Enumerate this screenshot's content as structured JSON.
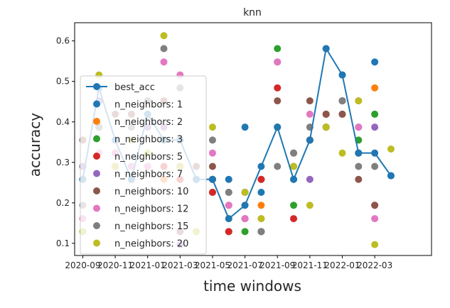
{
  "chart_data": {
    "type": "scatter",
    "title": "knn",
    "xlabel": "time windows",
    "ylabel": "accuracy",
    "x_ticks": [
      "2020-09",
      "2020-11",
      "2021-01",
      "2021-03",
      "2021-05",
      "2021-07",
      "2021-09",
      "2021-11",
      "2022-01",
      "2022-03"
    ],
    "y_ticks": [
      "0.1",
      "0.2",
      "0.3",
      "0.4",
      "0.5",
      "0.6"
    ],
    "xlim": [
      -0.5,
      21.5
    ],
    "ylim": [
      0.07,
      0.645
    ],
    "grid": false,
    "legend_position": "left",
    "legend": [
      {
        "label": "best_acc",
        "color": "#1f77b4",
        "kind": "line"
      },
      {
        "label": "n_neighbors: 1",
        "color": "#1f77b4",
        "kind": "marker"
      },
      {
        "label": "n_neighbors: 2",
        "color": "#ff7f0e",
        "kind": "marker"
      },
      {
        "label": "n_neighbors: 3",
        "color": "#2ca02c",
        "kind": "marker"
      },
      {
        "label": "n_neighbors: 5",
        "color": "#d62728",
        "kind": "marker"
      },
      {
        "label": "n_neighbors: 7",
        "color": "#9467bd",
        "kind": "marker"
      },
      {
        "label": "n_neighbors: 10",
        "color": "#8c564b",
        "kind": "marker"
      },
      {
        "label": "n_neighbors: 12",
        "color": "#e377c2",
        "kind": "marker"
      },
      {
        "label": "n_neighbors: 15",
        "color": "#7f7f7f",
        "kind": "marker"
      },
      {
        "label": "n_neighbors: 20",
        "color": "#bcbd22",
        "kind": "marker"
      }
    ],
    "x": [
      0,
      1,
      2,
      3,
      4,
      5,
      6,
      7,
      8,
      9,
      10,
      11,
      12,
      13,
      14,
      15,
      16,
      17,
      18,
      19,
      20,
      21
    ],
    "series": [
      {
        "name": "best_acc",
        "color": "#1f77b4",
        "type": "line",
        "values": [
          0.258,
          0.484,
          0.355,
          0.258,
          0.419,
          0.355,
          0.355,
          0.258,
          0.258,
          0.161,
          0.194,
          0.29,
          0.387,
          0.258,
          0.355,
          0.581,
          0.516,
          0.323,
          0.323,
          0.267,
          null,
          null
        ]
      },
      {
        "name": "n_neighbors: 1",
        "color": "#1f77b4",
        "type": "scatter",
        "values": [
          0.258,
          0.484,
          0.323,
          0.258,
          0.419,
          0.355,
          0.355,
          0.258,
          0.258,
          0.258,
          0.387,
          0.226,
          0.387,
          0.258,
          0.355,
          0.581,
          0.516,
          0.323,
          0.548,
          0.267,
          null,
          null
        ]
      },
      {
        "name": "n_neighbors: 2",
        "color": "#ff7f0e",
        "type": "scatter",
        "values": [
          0.29,
          0.452,
          0.323,
          0.29,
          0.29,
          0.258,
          0.29,
          0.258,
          0.258,
          0.194,
          0.194,
          0.194,
          0.387,
          0.29,
          0.355,
          0.419,
          0.452,
          0.452,
          0.484,
          null,
          null,
          null
        ]
      },
      {
        "name": "n_neighbors: 3",
        "color": "#2ca02c",
        "type": "scatter",
        "values": [
          0.29,
          0.452,
          0.29,
          0.29,
          0.29,
          0.29,
          0.29,
          0.258,
          0.226,
          0.129,
          0.129,
          0.258,
          0.581,
          0.194,
          0.355,
          0.387,
          0.452,
          0.355,
          0.419,
          null,
          null,
          null
        ]
      },
      {
        "name": "n_neighbors: 5",
        "color": "#d62728",
        "type": "scatter",
        "values": [
          0.29,
          0.387,
          0.29,
          0.258,
          0.29,
          0.29,
          0.258,
          0.258,
          0.226,
          0.129,
          0.161,
          0.258,
          0.484,
          0.161,
          0.355,
          0.419,
          0.452,
          0.323,
          0.194,
          null,
          null,
          null
        ]
      },
      {
        "name": "n_neighbors: 7",
        "color": "#9467bd",
        "type": "scatter",
        "values": [
          0.29,
          0.452,
          0.323,
          0.29,
          0.387,
          0.387,
          0.097,
          0.258,
          0.258,
          0.194,
          0.161,
          0.129,
          0.548,
          0.29,
          0.258,
          0.387,
          0.419,
          0.387,
          0.387,
          null,
          null,
          null
        ]
      },
      {
        "name": "n_neighbors: 10",
        "color": "#8c564b",
        "type": "scatter",
        "values": [
          0.355,
          0.387,
          0.419,
          0.419,
          0.452,
          0.452,
          0.129,
          0.29,
          0.29,
          0.226,
          0.226,
          0.129,
          0.452,
          0.323,
          0.452,
          0.419,
          0.419,
          0.258,
          0.194,
          null,
          null,
          null
        ]
      },
      {
        "name": "n_neighbors: 12",
        "color": "#e377c2",
        "type": "scatter",
        "values": [
          0.161,
          0.323,
          0.323,
          0.29,
          0.29,
          0.548,
          0.516,
          0.258,
          0.323,
          0.194,
          0.161,
          0.161,
          0.548,
          0.29,
          0.419,
          0.387,
          0.452,
          0.387,
          0.161,
          null,
          null,
          null
        ]
      },
      {
        "name": "n_neighbors: 15",
        "color": "#7f7f7f",
        "type": "scatter",
        "values": [
          0.194,
          0.387,
          0.355,
          0.387,
          0.452,
          0.581,
          0.484,
          0.258,
          0.355,
          0.226,
          0.226,
          0.129,
          0.29,
          0.323,
          0.387,
          0.387,
          0.452,
          0.29,
          0.29,
          null,
          null,
          null
        ]
      },
      {
        "name": "n_neighbors: 20",
        "color": "#bcbd22",
        "type": "scatter",
        "values": [
          0.129,
          0.516,
          0.29,
          0.355,
          0.323,
          0.613,
          0.29,
          0.129,
          0.387,
          0.161,
          0.226,
          0.161,
          0.387,
          0.29,
          0.194,
          0.387,
          0.323,
          0.452,
          0.097,
          0.333,
          null,
          null
        ]
      }
    ]
  }
}
